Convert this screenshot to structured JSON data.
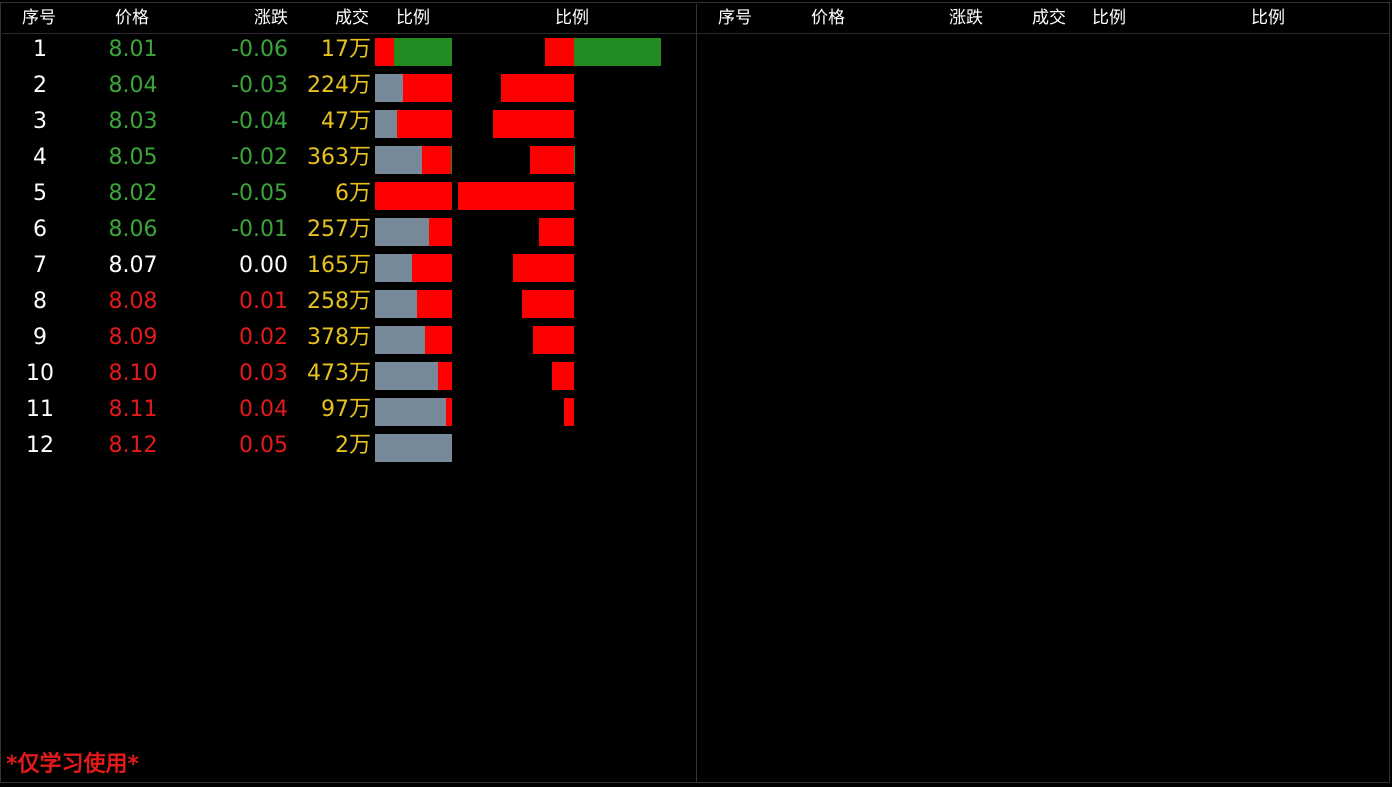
{
  "left_panel": {
    "headers": {
      "seq": "序号",
      "price": "价格",
      "change": "涨跌",
      "volume": "成交",
      "ratio": "比例",
      "ratio2": "比例"
    }
  },
  "right_panel": {
    "headers": {
      "seq": "序号",
      "price": "价格",
      "change": "涨跌",
      "volume": "成交",
      "ratio": "比例",
      "ratio2": "比例"
    }
  },
  "colors": {
    "down": "#3aa63a",
    "up": "#e31a1a",
    "flat": "#ffffff",
    "volume": "#e6c21f",
    "bar_gray": "#778899",
    "bar_red": "#ff0000",
    "bar_green": "#228b22"
  },
  "rows": [
    {
      "seq": "1",
      "price": "8.01",
      "change": "-0.06",
      "volume": "17万",
      "trend": "down",
      "ratio_red": 0.25,
      "ratio_green": 0.75,
      "ratio_gray": 0.0,
      "ratio2_red": 0.2,
      "ratio2_green": 0.6
    },
    {
      "seq": "2",
      "price": "8.04",
      "change": "-0.03",
      "volume": "224万",
      "trend": "down",
      "ratio_red": 0.63,
      "ratio_green": 0.0,
      "ratio_gray": 0.37,
      "ratio2_red": 0.5,
      "ratio2_green": 0.0
    },
    {
      "seq": "3",
      "price": "8.03",
      "change": "-0.04",
      "volume": "47万",
      "trend": "down",
      "ratio_red": 0.72,
      "ratio_green": 0.0,
      "ratio_gray": 0.28,
      "ratio2_red": 0.56,
      "ratio2_green": 0.0
    },
    {
      "seq": "4",
      "price": "8.05",
      "change": "-0.02",
      "volume": "363万",
      "trend": "down",
      "ratio_red": 0.38,
      "ratio_green": 0.01,
      "ratio_gray": 0.61,
      "ratio2_red": 0.3,
      "ratio2_green": 0.01
    },
    {
      "seq": "5",
      "price": "8.02",
      "change": "-0.05",
      "volume": "6万",
      "trend": "down",
      "ratio_red": 1.0,
      "ratio_green": 0.0,
      "ratio_gray": 0.0,
      "ratio2_red": 0.8,
      "ratio2_green": 0.0
    },
    {
      "seq": "6",
      "price": "8.06",
      "change": "-0.01",
      "volume": "257万",
      "trend": "down",
      "ratio_red": 0.3,
      "ratio_green": 0.0,
      "ratio_gray": 0.7,
      "ratio2_red": 0.24,
      "ratio2_green": 0.0
    },
    {
      "seq": "7",
      "price": "8.07",
      "change": "0.00",
      "volume": "165万",
      "trend": "flat",
      "ratio_red": 0.52,
      "ratio_green": 0.0,
      "ratio_gray": 0.48,
      "ratio2_red": 0.42,
      "ratio2_green": 0.0
    },
    {
      "seq": "8",
      "price": "8.08",
      "change": "0.01",
      "volume": "258万",
      "trend": "up",
      "ratio_red": 0.45,
      "ratio_green": 0.0,
      "ratio_gray": 0.55,
      "ratio2_red": 0.36,
      "ratio2_green": 0.0
    },
    {
      "seq": "9",
      "price": "8.09",
      "change": "0.02",
      "volume": "378万",
      "trend": "up",
      "ratio_red": 0.35,
      "ratio_green": 0.0,
      "ratio_gray": 0.65,
      "ratio2_red": 0.28,
      "ratio2_green": 0.0
    },
    {
      "seq": "10",
      "price": "8.10",
      "change": "0.03",
      "volume": "473万",
      "trend": "up",
      "ratio_red": 0.18,
      "ratio_green": 0.0,
      "ratio_gray": 0.82,
      "ratio2_red": 0.15,
      "ratio2_green": 0.0
    },
    {
      "seq": "11",
      "price": "8.11",
      "change": "0.04",
      "volume": "97万",
      "trend": "up",
      "ratio_red": 0.08,
      "ratio_green": 0.0,
      "ratio_gray": 0.92,
      "ratio2_red": 0.07,
      "ratio2_green": 0.0
    },
    {
      "seq": "12",
      "price": "8.12",
      "change": "0.05",
      "volume": "2万",
      "trend": "up",
      "ratio_red": 0.0,
      "ratio_green": 0.0,
      "ratio_gray": 1.0,
      "ratio2_red": 0.0,
      "ratio2_green": 0.0
    }
  ],
  "footer": {
    "notice": "*仅学习使用*"
  }
}
